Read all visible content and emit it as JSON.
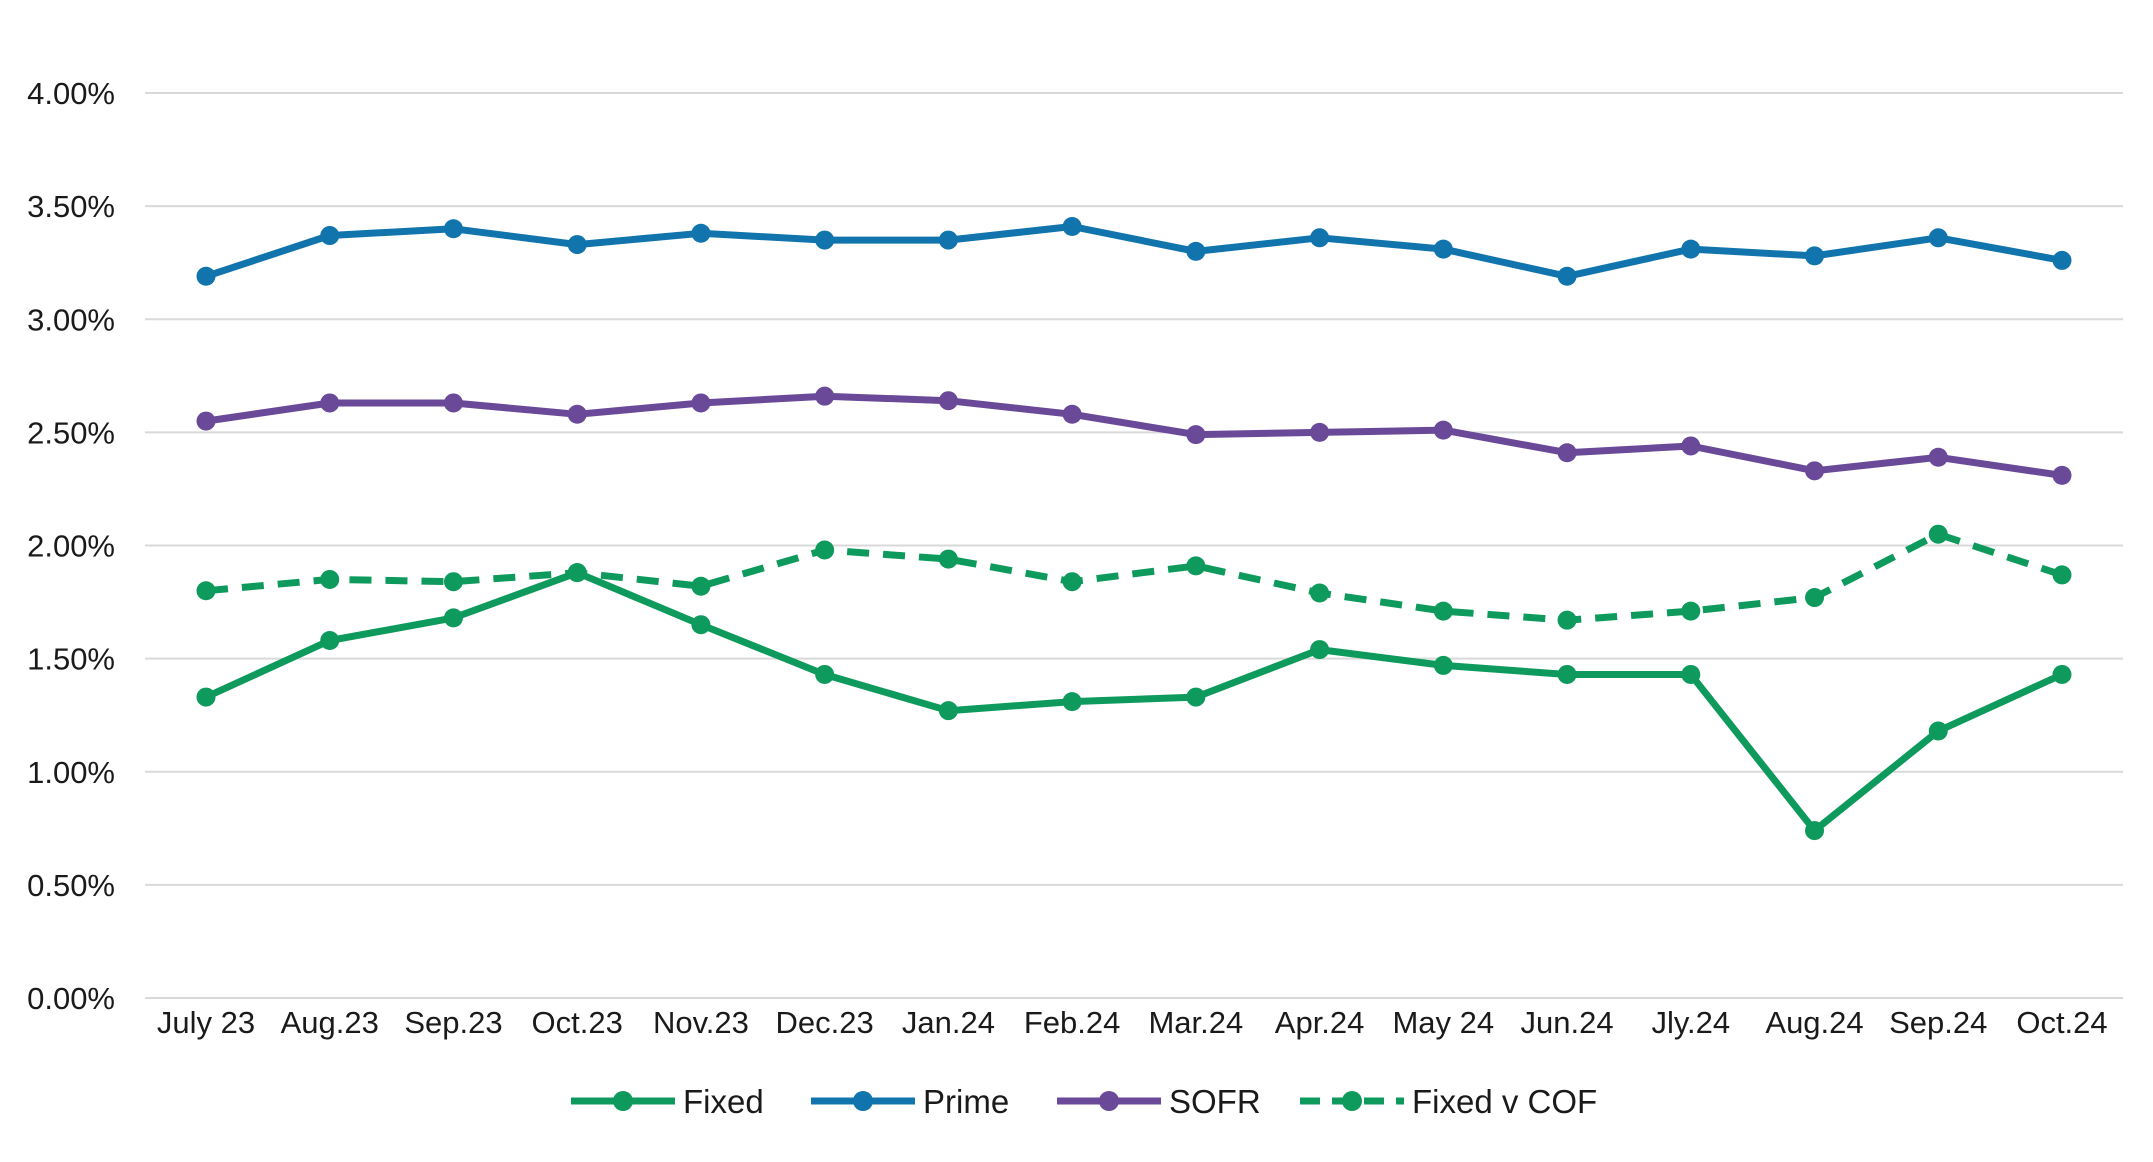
{
  "chart_data": {
    "type": "line",
    "title": "",
    "xlabel": "",
    "ylabel": "",
    "categories": [
      "July 23",
      "Aug.23",
      "Sep.23",
      "Oct.23",
      "Nov.23",
      "Dec.23",
      "Jan.24",
      "Feb.24",
      "Mar.24",
      "Apr.24",
      "May 24",
      "Jun.24",
      "Jly.24",
      "Aug.24",
      "Sep.24",
      "Oct.24"
    ],
    "ylim": [
      0,
      4.0
    ],
    "yticks": [
      0,
      0.5,
      1.0,
      1.5,
      2.0,
      2.5,
      3.0,
      3.5,
      4.0
    ],
    "ytick_labels": [
      "0.00%",
      "0.50%",
      "1.00%",
      "1.50%",
      "2.00%",
      "2.50%",
      "3.00%",
      "3.50%",
      "4.00%"
    ],
    "grid": true,
    "legend_position": "bottom",
    "series": [
      {
        "name": "Fixed",
        "color": "#0e9a5c",
        "dash": false,
        "values": [
          1.33,
          1.58,
          1.68,
          1.88,
          1.65,
          1.43,
          1.27,
          1.31,
          1.33,
          1.54,
          1.47,
          1.43,
          1.43,
          0.74,
          1.18,
          1.43
        ]
      },
      {
        "name": "Prime",
        "color": "#1174ad",
        "dash": false,
        "values": [
          3.19,
          3.37,
          3.4,
          3.33,
          3.38,
          3.35,
          3.35,
          3.41,
          3.3,
          3.36,
          3.31,
          3.19,
          3.31,
          3.28,
          3.36,
          3.26
        ]
      },
      {
        "name": "SOFR",
        "color": "#6a4a98",
        "dash": false,
        "values": [
          2.55,
          2.63,
          2.63,
          2.58,
          2.63,
          2.66,
          2.64,
          2.58,
          2.49,
          2.5,
          2.51,
          2.41,
          2.44,
          2.33,
          2.39,
          2.31
        ]
      },
      {
        "name": "Fixed v COF",
        "color": "#0e9a5c",
        "dash": true,
        "values": [
          1.8,
          1.85,
          1.84,
          1.88,
          1.82,
          1.98,
          1.94,
          1.84,
          1.91,
          1.79,
          1.71,
          1.67,
          1.71,
          1.77,
          2.05,
          1.87
        ]
      }
    ]
  }
}
